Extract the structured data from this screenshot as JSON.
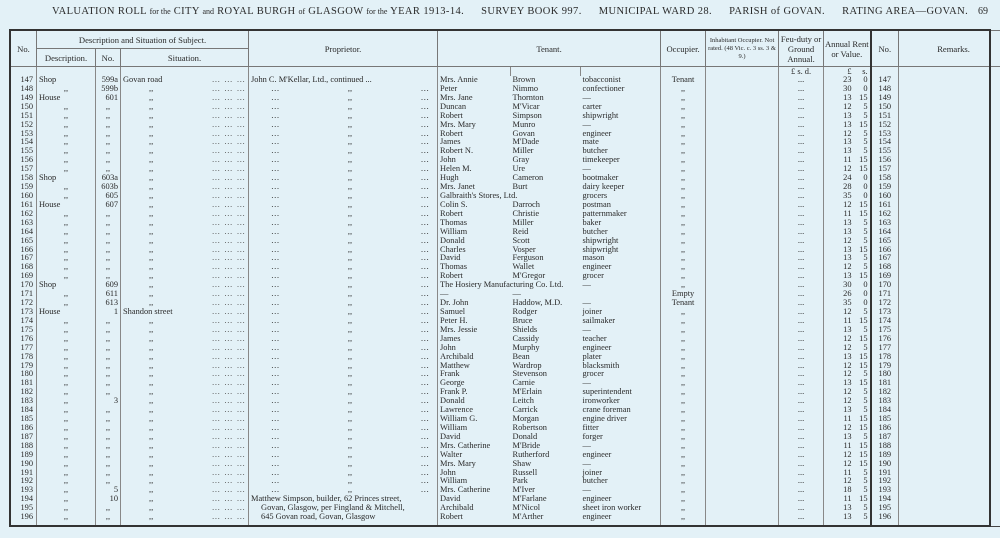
{
  "header": {
    "title_parts": [
      "VALUATION ROLL",
      "for the",
      "CITY",
      "and",
      "ROYAL BURGH",
      "of",
      "GLASGOW",
      "for the",
      "YEAR 1913-14."
    ],
    "survey_book": "SURVEY BOOK 997.",
    "ward": "MUNICIPAL WARD 28.",
    "parish": "PARISH of GOVAN.",
    "rating_area": "RATING AREA—GOVAN.",
    "page_number": "69"
  },
  "columns": {
    "no": "No.",
    "description_group": "Description and Situation of Subject.",
    "description": "Description.",
    "number": "No.",
    "situation": "Situation.",
    "proprietor": "Proprietor.",
    "tenant": "Tenant.",
    "occupier": "Occupier.",
    "inhabitant": "Inhabitant Occupier. Not rated. (48 Vic. c. 3 ss. 3 & 9.)",
    "feu_duty": "Feu-duty or Ground Annual.",
    "annual_rent": "Annual Rent or Value.",
    "no_right": "No.",
    "remarks": "Remarks.",
    "feu_units": "£  s.  d.",
    "rent_units_l": "£",
    "rent_units_s": "s."
  },
  "rows": [
    {
      "no": "147",
      "desc": "Shop",
      "num": "599a",
      "sit": "Govan road",
      "prop": "John C. M'Kellar, Ltd., continued ...",
      "first": "Mrs. Annie",
      "last": "Brown",
      "occ": "tobacconist",
      "occupier": "Tenant",
      "feu": "...",
      "l": "23",
      "s": "0"
    },
    {
      "no": "148",
      "desc": ",,",
      "num": "599b",
      "sit": ",,",
      "prop": ",,",
      "first": "Peter",
      "last": "Nimmo",
      "occ": "confectioner",
      "occupier": ",,",
      "feu": "...",
      "l": "30",
      "s": "0"
    },
    {
      "no": "149",
      "desc": "House",
      "num": "601",
      "sit": ",,",
      "prop": ",,",
      "first": "Mrs. Jane",
      "last": "Thornton",
      "occ": "—",
      "occupier": ",,",
      "feu": "...",
      "l": "13",
      "s": "15"
    },
    {
      "no": "150",
      "desc": ",,",
      "num": ",,",
      "sit": ",,",
      "prop": ",,",
      "first": "Duncan",
      "last": "M'Vicar",
      "occ": "carter",
      "occupier": ",,",
      "feu": "...",
      "l": "12",
      "s": "5"
    },
    {
      "no": "151",
      "desc": ",,",
      "num": ",,",
      "sit": ",,",
      "prop": ",,",
      "first": "Robert",
      "last": "Simpson",
      "occ": "shipwright",
      "occupier": ",,",
      "feu": "...",
      "l": "13",
      "s": "5"
    },
    {
      "no": "152",
      "desc": ",,",
      "num": ",,",
      "sit": ",,",
      "prop": ",,",
      "first": "Mrs. Mary",
      "last": "Munro",
      "occ": "—",
      "occupier": ",,",
      "feu": "...",
      "l": "13",
      "s": "15"
    },
    {
      "no": "153",
      "desc": ",,",
      "num": ",,",
      "sit": ",,",
      "prop": ",,",
      "first": "Robert",
      "last": "Govan",
      "occ": "engineer",
      "occupier": ",,",
      "feu": "...",
      "l": "12",
      "s": "5"
    },
    {
      "no": "154",
      "desc": ",,",
      "num": ",,",
      "sit": ",,",
      "prop": ",,",
      "first": "James",
      "last": "M'Dade",
      "occ": "mate",
      "occupier": ",,",
      "feu": "...",
      "l": "13",
      "s": "5"
    },
    {
      "no": "155",
      "desc": ",,",
      "num": ",,",
      "sit": ",,",
      "prop": ",,",
      "first": "Robert N.",
      "last": "Miller",
      "occ": "butcher",
      "occupier": ",,",
      "feu": "...",
      "l": "13",
      "s": "5"
    },
    {
      "no": "156",
      "desc": ",,",
      "num": ",,",
      "sit": ",,",
      "prop": ",,",
      "first": "John",
      "last": "Gray",
      "occ": "timekeeper",
      "occupier": ",,",
      "feu": "...",
      "l": "11",
      "s": "15"
    },
    {
      "no": "157",
      "desc": ",,",
      "num": ",,",
      "sit": ",,",
      "prop": ",,",
      "first": "Helen M.",
      "last": "Ure",
      "occ": "—",
      "occupier": ",,",
      "feu": "...",
      "l": "12",
      "s": "15"
    },
    {
      "no": "158",
      "desc": "Shop",
      "num": "603a",
      "sit": ",,",
      "prop": ",,",
      "first": "Hugh",
      "last": "Cameron",
      "occ": "bootmaker",
      "occupier": ",,",
      "feu": "...",
      "l": "24",
      "s": "0"
    },
    {
      "no": "159",
      "desc": ",,",
      "num": "603b",
      "sit": ",,",
      "prop": ",,",
      "first": "Mrs. Janet",
      "last": "Burt",
      "occ": "dairy keeper",
      "occupier": ",,",
      "feu": "...",
      "l": "28",
      "s": "0"
    },
    {
      "no": "160",
      "desc": ",,",
      "num": "605",
      "sit": ",,",
      "prop": ",,",
      "first": "Galbraith's Stores, Ltd.",
      "last": "",
      "occ": "grocers",
      "occupier": ",,",
      "feu": "...",
      "l": "35",
      "s": "0"
    },
    {
      "no": "161",
      "desc": "House",
      "num": "607",
      "sit": ",,",
      "prop": ",,",
      "first": "Colin S.",
      "last": "Darroch",
      "occ": "postman",
      "occupier": ",,",
      "feu": "...",
      "l": "12",
      "s": "15"
    },
    {
      "no": "162",
      "desc": ",,",
      "num": ",,",
      "sit": ",,",
      "prop": ",,",
      "first": "Robert",
      "last": "Christie",
      "occ": "patternmaker",
      "occupier": ",,",
      "feu": "...",
      "l": "11",
      "s": "15"
    },
    {
      "no": "163",
      "desc": ",,",
      "num": ",,",
      "sit": ",,",
      "prop": ",,",
      "first": "Thomas",
      "last": "Miller",
      "occ": "baker",
      "occupier": ",,",
      "feu": "...",
      "l": "13",
      "s": "5"
    },
    {
      "no": "164",
      "desc": ",,",
      "num": ",,",
      "sit": ",,",
      "prop": ",,",
      "first": "William",
      "last": "Reid",
      "occ": "butcher",
      "occupier": ",,",
      "feu": "...",
      "l": "13",
      "s": "5"
    },
    {
      "no": "165",
      "desc": ",,",
      "num": ",,",
      "sit": ",,",
      "prop": ",,",
      "first": "Donald",
      "last": "Scott",
      "occ": "shipwright",
      "occupier": ",,",
      "feu": "...",
      "l": "12",
      "s": "5"
    },
    {
      "no": "166",
      "desc": ",,",
      "num": ",,",
      "sit": ",,",
      "prop": ",,",
      "first": "Charles",
      "last": "Vosper",
      "occ": "shipwright",
      "occupier": ",,",
      "feu": "...",
      "l": "13",
      "s": "15"
    },
    {
      "no": "167",
      "desc": ",,",
      "num": ",,",
      "sit": ",,",
      "prop": ",,",
      "first": "David",
      "last": "Ferguson",
      "occ": "mason",
      "occupier": ",,",
      "feu": "...",
      "l": "13",
      "s": "5"
    },
    {
      "no": "168",
      "desc": ",,",
      "num": ",,",
      "sit": ",,",
      "prop": ",,",
      "first": "Thomas",
      "last": "Wallet",
      "occ": "engineer",
      "occupier": ",,",
      "feu": "...",
      "l": "12",
      "s": "5"
    },
    {
      "no": "169",
      "desc": ",,",
      "num": ",,",
      "sit": ",,",
      "prop": ",,",
      "first": "Robert",
      "last": "M'Gregor",
      "occ": "grocer",
      "occupier": ",,",
      "feu": "...",
      "l": "13",
      "s": "15"
    },
    {
      "no": "170",
      "desc": "Shop",
      "num": "609",
      "sit": ",,",
      "prop": ",,",
      "first": "The Hosiery Manufacturing Co. Ltd.",
      "last": "",
      "occ": "—",
      "occupier": ",,",
      "feu": "...",
      "l": "30",
      "s": "0"
    },
    {
      "no": "171",
      "desc": ",,",
      "num": "611",
      "sit": ",,",
      "prop": ",,",
      "first": "—",
      "last": "—",
      "occ": "",
      "occupier": "Empty",
      "feu": "...",
      "l": "26",
      "s": "0"
    },
    {
      "no": "172",
      "desc": ",,",
      "num": "613",
      "sit": ",,",
      "prop": ",,",
      "first": "Dr. John",
      "last": "Haddow, M.D.",
      "occ": "—",
      "occupier": "Tenant",
      "feu": "...",
      "l": "35",
      "s": "0"
    },
    {
      "no": "173",
      "desc": "House",
      "num": "1",
      "sit": "Shandon street",
      "prop": ",,",
      "first": "Samuel",
      "last": "Rodger",
      "occ": "joiner",
      "occupier": ",,",
      "feu": "...",
      "l": "12",
      "s": "5"
    },
    {
      "no": "174",
      "desc": ",,",
      "num": ",,",
      "sit": ",,",
      "prop": ",,",
      "first": "Peter H.",
      "last": "Bruce",
      "occ": "sailmaker",
      "occupier": ",,",
      "feu": "...",
      "l": "11",
      "s": "15"
    },
    {
      "no": "175",
      "desc": ",,",
      "num": ",,",
      "sit": ",,",
      "prop": ",,",
      "first": "Mrs. Jessie",
      "last": "Shields",
      "occ": "—",
      "occupier": ",,",
      "feu": "...",
      "l": "13",
      "s": "5"
    },
    {
      "no": "176",
      "desc": ",,",
      "num": ",,",
      "sit": ",,",
      "prop": ",,",
      "first": "James",
      "last": "Cassidy",
      "occ": "teacher",
      "occupier": ",,",
      "feu": "...",
      "l": "12",
      "s": "15"
    },
    {
      "no": "177",
      "desc": ",,",
      "num": ",,",
      "sit": ",,",
      "prop": ",,",
      "first": "John",
      "last": "Murphy",
      "occ": "engineer",
      "occupier": ",,",
      "feu": "...",
      "l": "12",
      "s": "5"
    },
    {
      "no": "178",
      "desc": ",,",
      "num": ",,",
      "sit": ",,",
      "prop": ",,",
      "first": "Archibald",
      "last": "Bean",
      "occ": "plater",
      "occupier": ",,",
      "feu": "...",
      "l": "13",
      "s": "15"
    },
    {
      "no": "179",
      "desc": ",,",
      "num": ",,",
      "sit": ",,",
      "prop": ",,",
      "first": "Matthew",
      "last": "Wardrop",
      "occ": "blacksmith",
      "occupier": ",,",
      "feu": "...",
      "l": "12",
      "s": "15"
    },
    {
      "no": "180",
      "desc": ",,",
      "num": ",,",
      "sit": ",,",
      "prop": ",,",
      "first": "Frank",
      "last": "Stevenson",
      "occ": "grocer",
      "occupier": ",,",
      "feu": "...",
      "l": "12",
      "s": "5"
    },
    {
      "no": "181",
      "desc": ",,",
      "num": ",,",
      "sit": ",,",
      "prop": ",,",
      "first": "George",
      "last": "Carnie",
      "occ": "—",
      "occupier": ",,",
      "feu": "...",
      "l": "13",
      "s": "15"
    },
    {
      "no": "182",
      "desc": ",,",
      "num": ",,",
      "sit": ",,",
      "prop": ",,",
      "first": "Frank P.",
      "last": "M'Erlain",
      "occ": "superintendent",
      "occupier": ",,",
      "feu": "...",
      "l": "12",
      "s": "5"
    },
    {
      "no": "183",
      "desc": ",,",
      "num": "3",
      "sit": ",,",
      "prop": ",,",
      "first": "Donald",
      "last": "Leitch",
      "occ": "ironworker",
      "occupier": ",,",
      "feu": "...",
      "l": "12",
      "s": "5"
    },
    {
      "no": "184",
      "desc": ",,",
      "num": ",,",
      "sit": ",,",
      "prop": ",,",
      "first": "Lawrence",
      "last": "Carrick",
      "occ": "crane foreman",
      "occupier": ",,",
      "feu": "...",
      "l": "13",
      "s": "5"
    },
    {
      "no": "185",
      "desc": ",,",
      "num": ",,",
      "sit": ",,",
      "prop": ",,",
      "first": "William G.",
      "last": "Morgan",
      "occ": "engine driver",
      "occupier": ",,",
      "feu": "...",
      "l": "11",
      "s": "15"
    },
    {
      "no": "186",
      "desc": ",,",
      "num": ",,",
      "sit": ",,",
      "prop": ",,",
      "first": "William",
      "last": "Robertson",
      "occ": "fitter",
      "occupier": ",,",
      "feu": "...",
      "l": "12",
      "s": "15"
    },
    {
      "no": "187",
      "desc": ",,",
      "num": ",,",
      "sit": ",,",
      "prop": ",,",
      "first": "David",
      "last": "Donald",
      "occ": "forger",
      "occupier": ",,",
      "feu": "...",
      "l": "13",
      "s": "5"
    },
    {
      "no": "188",
      "desc": ",,",
      "num": ",,",
      "sit": ",,",
      "prop": ",,",
      "first": "Mrs. Catherine",
      "last": "M'Bride",
      "occ": "—",
      "occupier": ",,",
      "feu": "...",
      "l": "11",
      "s": "15"
    },
    {
      "no": "189",
      "desc": ",,",
      "num": ",,",
      "sit": ",,",
      "prop": ",,",
      "first": "Walter",
      "last": "Rutherford",
      "occ": "engineer",
      "occupier": ",,",
      "feu": "...",
      "l": "12",
      "s": "15"
    },
    {
      "no": "190",
      "desc": ",,",
      "num": ",,",
      "sit": ",,",
      "prop": ",,",
      "first": "Mrs. Mary",
      "last": "Shaw",
      "occ": "—",
      "occupier": ",,",
      "feu": "...",
      "l": "12",
      "s": "15"
    },
    {
      "no": "191",
      "desc": ",,",
      "num": ",,",
      "sit": ",,",
      "prop": ",,",
      "first": "John",
      "last": "Russell",
      "occ": "joiner",
      "occupier": ",,",
      "feu": "...",
      "l": "11",
      "s": "5"
    },
    {
      "no": "192",
      "desc": ",,",
      "num": ",,",
      "sit": ",,",
      "prop": ",,",
      "first": "William",
      "last": "Park",
      "occ": "butcher",
      "occupier": ",,",
      "feu": "...",
      "l": "12",
      "s": "5"
    },
    {
      "no": "193",
      "desc": ",,",
      "num": "5",
      "sit": ",,",
      "prop": ",,",
      "first": "Mrs. Catherine",
      "last": "M'Iver",
      "occ": "—",
      "occupier": ",,",
      "feu": "...",
      "l": "18",
      "s": "5"
    },
    {
      "no": "194",
      "desc": ",,",
      "num": "10",
      "sit": ",,",
      "prop": "Matthew Simpson, builder, 62 Princes street,",
      "first": "David",
      "last": "M'Farlane",
      "occ": "engineer",
      "occupier": ",,",
      "feu": "...",
      "l": "11",
      "s": "15"
    },
    {
      "no": "195",
      "desc": ",,",
      "num": ",,",
      "sit": ",,",
      "prop": "Govan, Glasgow, per Fingland & Mitchell,",
      "first": "Archibald",
      "last": "M'Nicol",
      "occ": "sheet iron worker",
      "occupier": ",,",
      "feu": "...",
      "l": "13",
      "s": "5"
    },
    {
      "no": "196",
      "desc": ",,",
      "num": ",,",
      "sit": ",,",
      "prop": "645 Govan road, Govan, Glasgow",
      "first": "Robert",
      "last": "M'Arther",
      "occ": "engineer",
      "occupier": ",,",
      "feu": "...",
      "l": "13",
      "s": "5"
    }
  ]
}
